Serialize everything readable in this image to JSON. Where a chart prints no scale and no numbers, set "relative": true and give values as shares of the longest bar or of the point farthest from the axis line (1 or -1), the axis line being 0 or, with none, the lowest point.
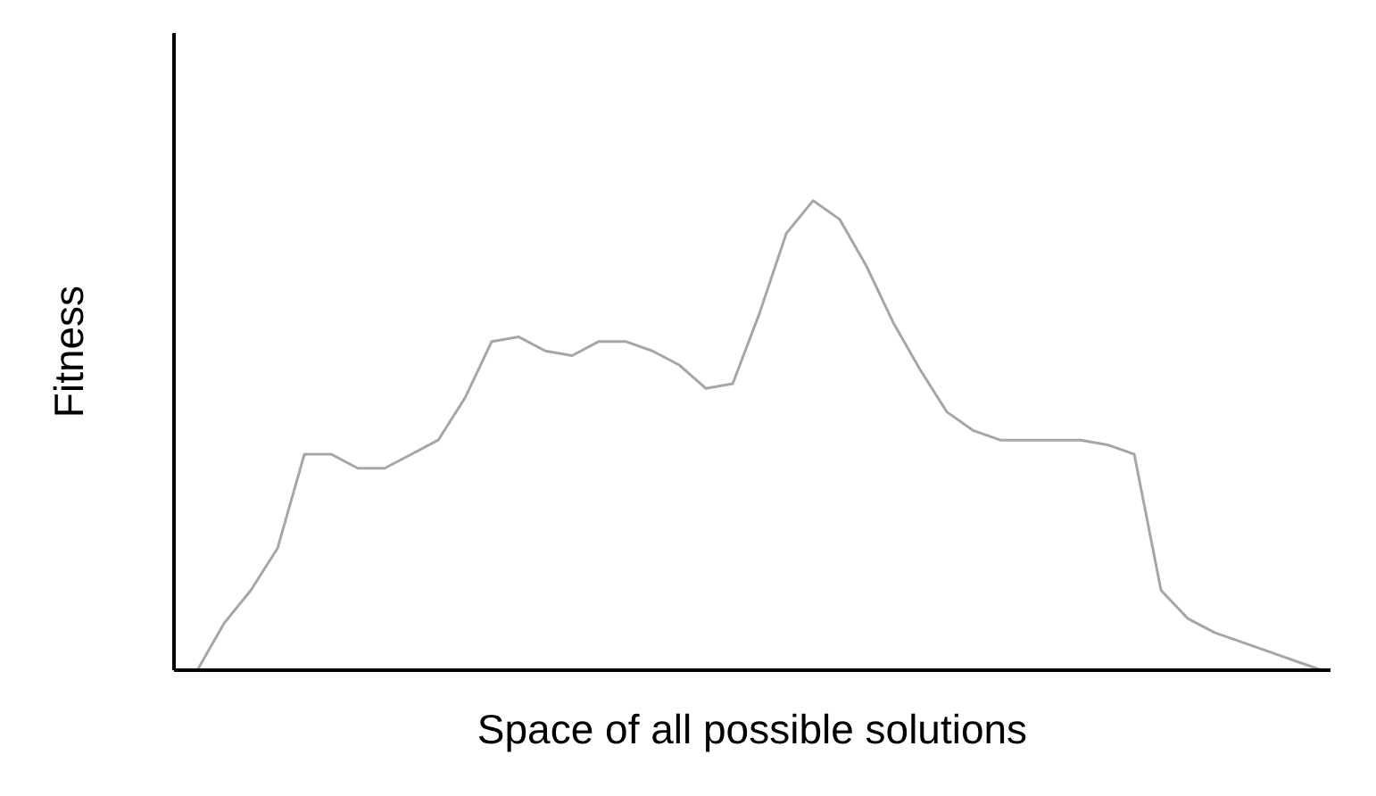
{
  "chart_data": {
    "type": "line",
    "relative": true,
    "xlabel": "Space of all possible solutions",
    "ylabel": "Fitness",
    "grid": false,
    "legend": false,
    "color": "#a6a6a6",
    "categories": [
      null,
      null,
      null,
      null,
      null,
      null,
      null,
      null,
      null,
      null,
      null,
      null,
      null,
      null,
      null,
      null,
      null,
      null,
      null,
      null,
      null,
      null,
      null,
      null,
      null,
      null,
      null,
      null,
      null,
      null,
      null,
      null,
      null,
      null,
      null,
      null,
      null,
      null,
      null,
      null,
      null,
      null,
      null
    ],
    "values": [
      0,
      0.1,
      0.17,
      0.26,
      0.46,
      0.46,
      0.43,
      0.43,
      0.46,
      0.49,
      0.58,
      0.7,
      0.71,
      0.68,
      0.67,
      0.7,
      0.7,
      0.68,
      0.65,
      0.6,
      0.61,
      0.76,
      0.93,
      1,
      0.96,
      0.86,
      0.74,
      0.64,
      0.55,
      0.51,
      0.49,
      0.49,
      0.49,
      0.49,
      0.48,
      0.46,
      0.17,
      0.11,
      0.08,
      0.06,
      0.04,
      0.02,
      0
    ]
  }
}
